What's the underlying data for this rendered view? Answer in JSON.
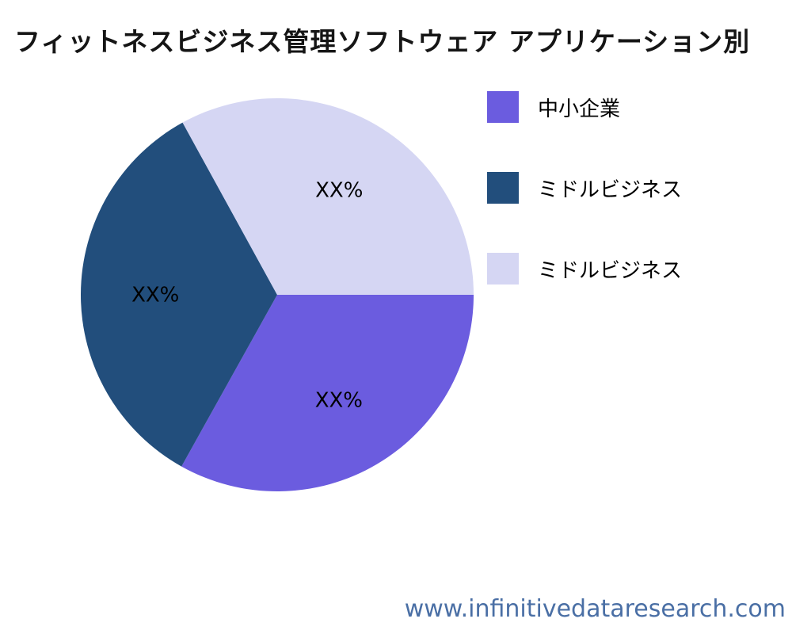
{
  "footer": {
    "url": "www.infinitivedataresearch.com",
    "color": "#4a6fa5"
  },
  "chart_data": {
    "type": "pie",
    "title": "フィットネスビジネス管理ソフトウェア アプリケーション別",
    "start_angle_deg": 0,
    "direction": "clockwise",
    "legend_position": "right",
    "label_color": "#000000",
    "background_color": "#ffffff",
    "slices": [
      {
        "label": "中小企業",
        "value": 33.1,
        "value_label": "XX%",
        "color": "#6B5CDF"
      },
      {
        "label": "ミドルビジネス",
        "value": 33.9,
        "value_label": "XX%",
        "color": "#224E7C"
      },
      {
        "label": "ミドルビジネス",
        "value": 33.0,
        "value_label": "XX%",
        "color": "#D5D6F3"
      }
    ]
  }
}
